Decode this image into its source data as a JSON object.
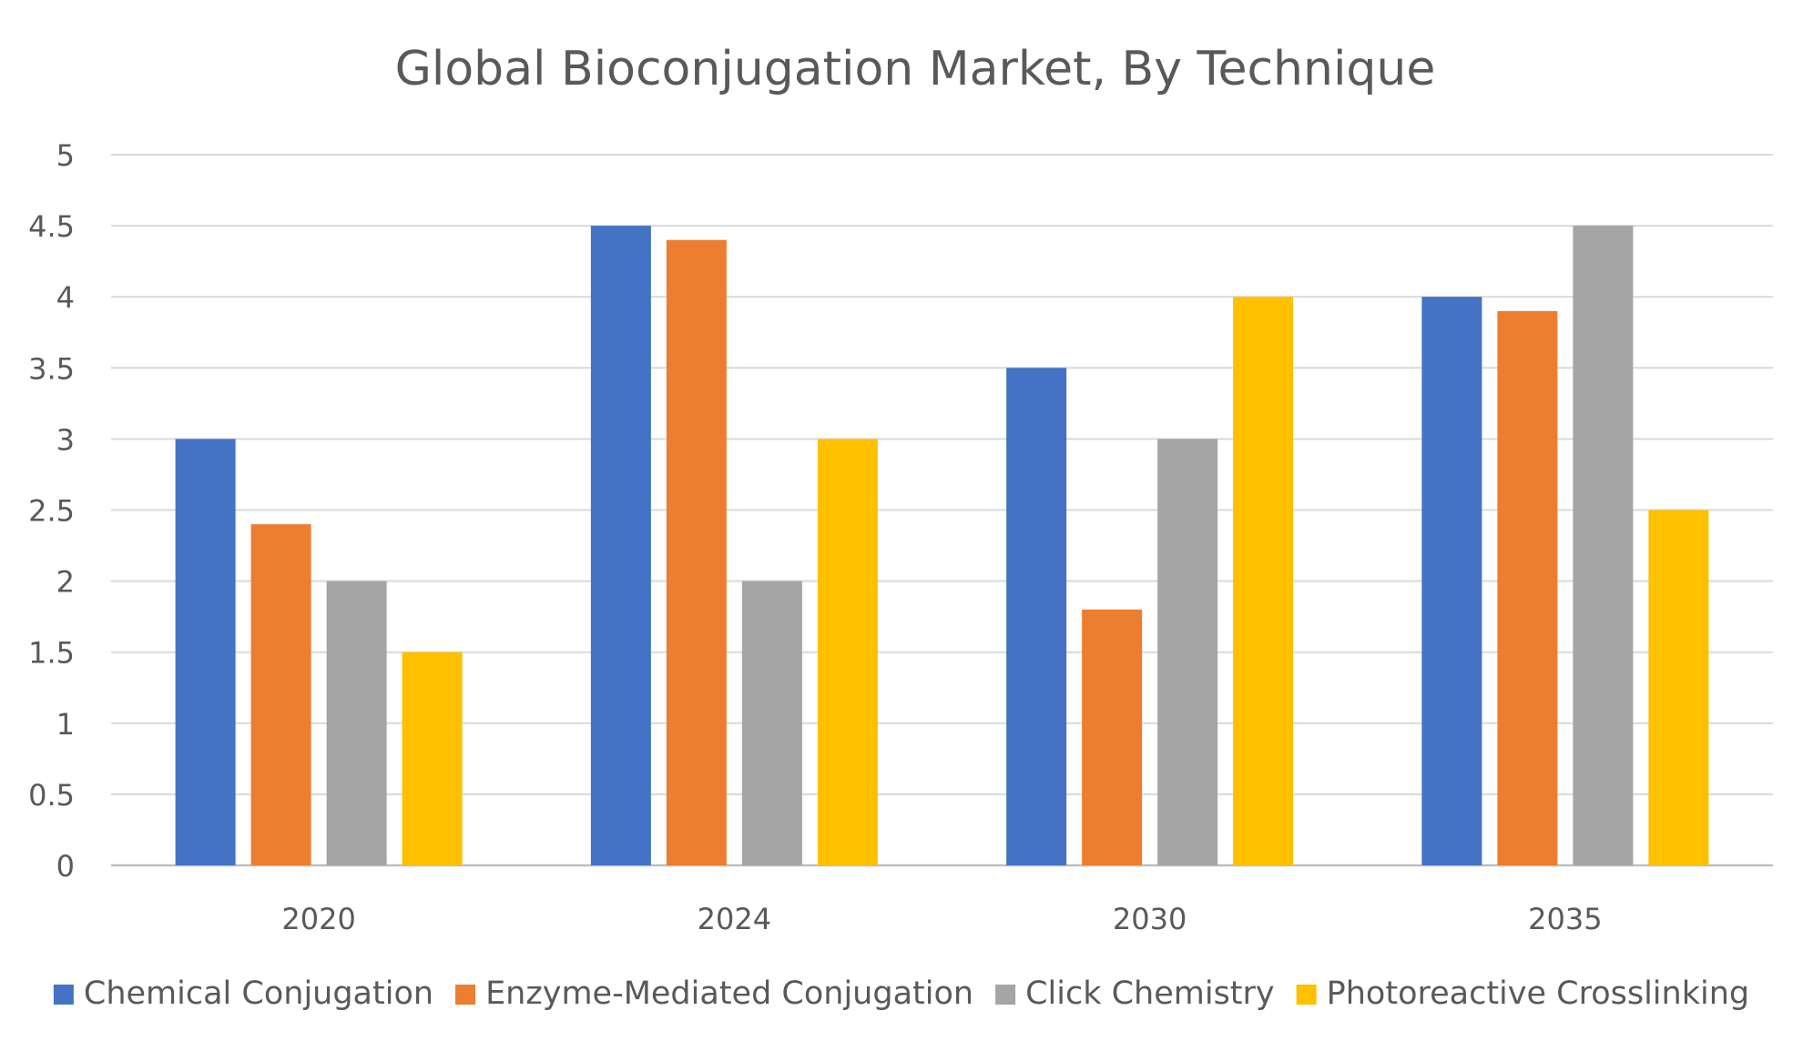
{
  "chart_data": {
    "type": "bar",
    "title": "Global Bioconjugation Market, By Technique",
    "xlabel": "",
    "ylabel": "",
    "categories": [
      "2020",
      "2024",
      "2030",
      "2035"
    ],
    "ylim": [
      0,
      5
    ],
    "yticks": [
      "0",
      "0.5",
      "1",
      "1.5",
      "2",
      "2.5",
      "3",
      "3.5",
      "4",
      "4.5",
      "5"
    ],
    "grid": true,
    "legend_position": "bottom",
    "series": [
      {
        "name": "Chemical Conjugation",
        "color": "#4472C4",
        "values": [
          3,
          4.5,
          3.5,
          4
        ]
      },
      {
        "name": "Enzyme-Mediated Conjugation",
        "color": "#ED7D31",
        "values": [
          2.4,
          4.4,
          1.8,
          3.9
        ]
      },
      {
        "name": "Click Chemistry",
        "color": "#A5A5A5",
        "values": [
          2,
          2,
          3,
          4.5
        ]
      },
      {
        "name": "Photoreactive Crosslinking",
        "color": "#FFC000",
        "values": [
          1.5,
          3,
          4,
          2.5
        ]
      }
    ]
  }
}
